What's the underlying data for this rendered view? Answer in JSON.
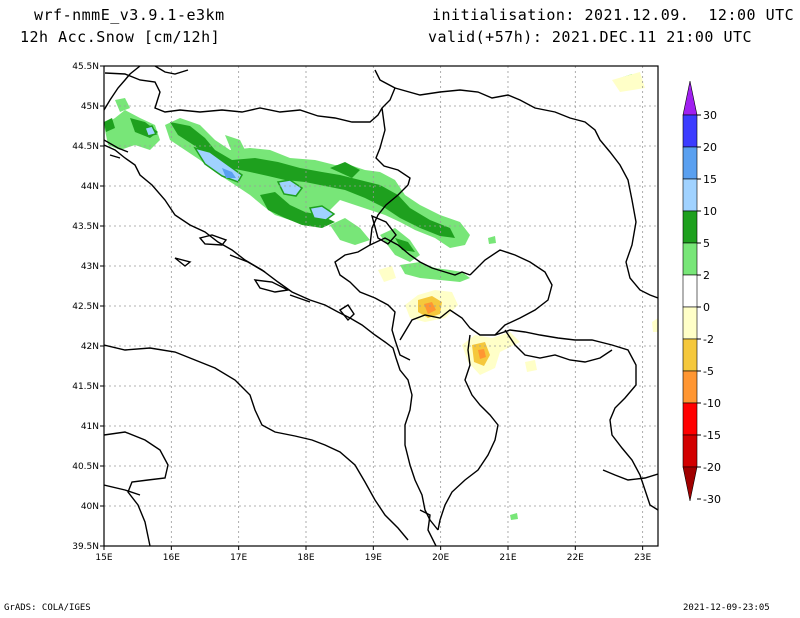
{
  "header": {
    "model": "wrf-nmmE_v3.9.1-e3km",
    "field": "12h Acc.Snow [cm/12h]",
    "init": "initialisation: 2021.12.09.  12:00 UTC",
    "valid": "valid(+57h): 2021.DEC.11 21:00 UTC"
  },
  "footer": {
    "credit": "GrADS: COLA/IGES",
    "timestamp": "2021-12-09-23:05"
  },
  "map": {
    "lat_labels": [
      "45.5N",
      "45N",
      "44.5N",
      "44N",
      "43.5N",
      "43N",
      "42.5N",
      "42N",
      "41.5N",
      "41N",
      "40.5N",
      "40N",
      "39.5N"
    ],
    "lon_labels": [
      "15E",
      "16E",
      "17E",
      "18E",
      "19E",
      "20E",
      "21E",
      "22E",
      "23E"
    ]
  },
  "colorbar": {
    "levels": [
      "30",
      "20",
      "15",
      "10",
      "5",
      "2",
      "0",
      "-2",
      "-5",
      "-10",
      "-15",
      "-20",
      "-30"
    ],
    "colors": [
      "#a020f0",
      "#3c3cff",
      "#5aa0f0",
      "#a0d2ff",
      "#1ea01e",
      "#78e678",
      "#ffffff",
      "#ffffc8",
      "#f5c83c",
      "#ff9632",
      "#ff0000",
      "#d20000",
      "#a00000"
    ]
  }
}
